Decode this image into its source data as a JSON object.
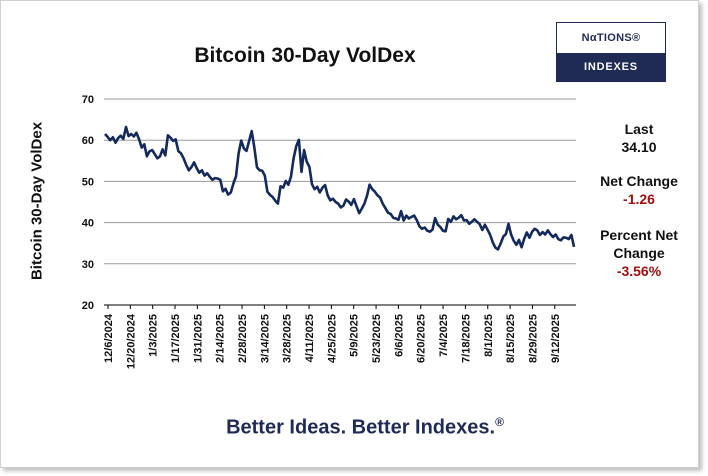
{
  "logo": {
    "top": "NαTIONS®",
    "bottom": "INDEXES"
  },
  "stats": {
    "last_label": "Last",
    "last_value": "34.10",
    "net_label": "Net Change",
    "net_value": "-1.26",
    "pct_label_line1": "Percent Net",
    "pct_label_line2": "Change",
    "pct_value": "-3.56%"
  },
  "slogan": "Better Ideas.  Better Indexes.",
  "slogan_mark": "®",
  "colors": {
    "line": "#142a5c",
    "brand": "#1f2a55",
    "negative": "#a01010"
  },
  "chart_data": {
    "type": "line",
    "title": "Bitcoin 30-Day VolDex",
    "ylabel": "Bitcoin 30-Day VolDex",
    "xlabel": "",
    "ylim": [
      20,
      70
    ],
    "yticks": [
      20,
      30,
      40,
      50,
      60,
      70
    ],
    "grid": "horizontal",
    "x_tick_labels": [
      "12/6/2024",
      "12/20/2024",
      "1/3/2025",
      "1/17/2025",
      "1/31/2025",
      "2/14/2025",
      "2/28/2025",
      "3/14/2025",
      "3/28/2025",
      "4/11/2025",
      "4/25/2025",
      "5/9/2025",
      "5/23/2025",
      "6/6/2025",
      "6/20/2025",
      "7/4/2025",
      "7/18/2025",
      "8/1/2025",
      "8/15/2025",
      "8/29/2025",
      "9/12/2025"
    ],
    "series": [
      {
        "values": [
          61.5,
          60.8,
          60.0,
          60.7,
          59.4,
          60.5,
          61.1,
          60.3,
          63.2,
          61.0,
          61.5,
          60.9,
          61.8,
          60.2,
          58.2,
          59.0,
          56.1,
          57.3,
          57.6,
          56.6,
          55.6,
          56.1,
          57.8,
          56.3,
          61.2,
          60.6,
          59.8,
          60.2,
          57.3,
          56.8,
          55.6,
          54.0,
          52.7,
          53.5,
          54.6,
          53.2,
          52.1,
          52.7,
          51.4,
          52.0,
          51.1,
          50.4,
          50.8,
          50.7,
          50.4,
          47.6,
          48.2,
          46.8,
          47.3,
          49.5,
          51.2,
          56.8,
          59.9,
          58.0,
          57.4,
          59.8,
          62.2,
          58.3,
          53.4,
          52.7,
          52.6,
          51.4,
          47.5,
          46.7,
          46.2,
          45.3,
          44.6,
          48.8,
          48.5,
          50.1,
          49.2,
          51.2,
          55.6,
          58.6,
          60.1,
          52.3,
          57.6,
          54.8,
          53.5,
          49.3,
          48.1,
          48.7,
          47.3,
          48.5,
          49.1,
          46.6,
          45.4,
          45.8,
          45.0,
          44.6,
          43.7,
          44.1,
          45.6,
          45.1,
          44.3,
          45.7,
          44.0,
          42.3,
          43.4,
          44.6,
          46.5,
          49.2,
          48.1,
          47.5,
          46.6,
          46.1,
          44.6,
          43.5,
          42.4,
          42.1,
          41.2,
          41.0,
          40.7,
          42.8,
          40.5,
          41.7,
          41.0,
          41.4,
          41.7,
          40.6,
          39.1,
          38.5,
          38.8,
          38.0,
          37.8,
          38.3,
          41.1,
          39.5,
          38.9,
          38.0,
          37.9,
          40.9,
          40.2,
          41.5,
          40.8,
          41.2,
          41.8,
          40.5,
          40.6,
          39.7,
          40.2,
          40.8,
          40.2,
          39.6,
          38.2,
          39.5,
          38.3,
          37.0,
          35.2,
          33.9,
          33.5,
          34.9,
          36.6,
          37.2,
          39.7,
          37.1,
          35.6,
          34.6,
          35.8,
          34.0,
          36.1,
          37.6,
          36.3,
          37.8,
          38.5,
          38.1,
          37.0,
          37.7,
          37.1,
          38.1,
          37.2,
          36.5,
          37.1,
          36.0,
          35.7,
          36.4,
          36.3,
          36.0,
          37.0,
          34.1
        ]
      }
    ]
  }
}
